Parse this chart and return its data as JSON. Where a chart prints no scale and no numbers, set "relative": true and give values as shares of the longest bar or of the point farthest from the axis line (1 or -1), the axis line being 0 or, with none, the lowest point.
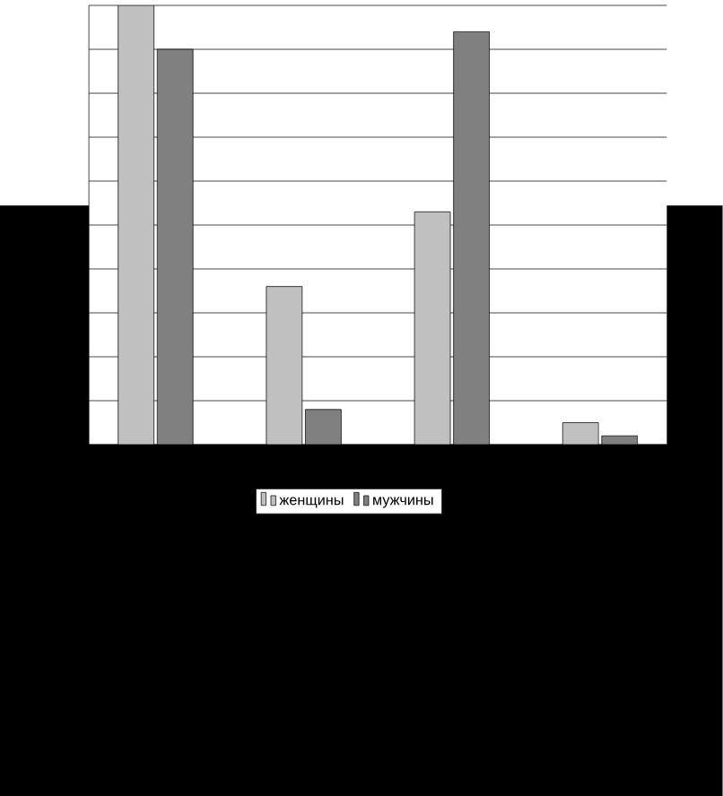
{
  "chart_data": {
    "type": "bar",
    "relative": true,
    "categories": [
      null,
      null,
      null,
      null
    ],
    "series": [
      {
        "name": "женщины",
        "color": "#c0c0c0",
        "values": [
          1,
          0.36,
          0.53,
          0.05
        ]
      },
      {
        "name": "мужчины",
        "color": "#808080",
        "values": [
          0.9,
          0.08,
          0.94,
          0.02
        ]
      }
    ],
    "grid": "y",
    "legend": "bottom"
  }
}
